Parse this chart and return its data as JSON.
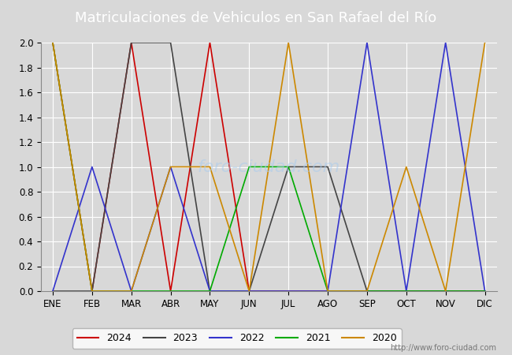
{
  "title": "Matriculaciones de Vehiculos en San Rafael del Río",
  "months": [
    "ENE",
    "FEB",
    "MAR",
    "ABR",
    "MAY",
    "JUN",
    "JUL",
    "AGO",
    "SEP",
    "OCT",
    "NOV",
    "DIC"
  ],
  "series": {
    "2024": [
      2,
      0,
      2,
      0,
      2,
      0,
      0,
      0,
      0,
      0,
      0,
      0
    ],
    "2023": [
      0,
      0,
      2,
      2,
      0,
      0,
      1,
      1,
      0,
      0,
      0,
      0
    ],
    "2022": [
      0,
      1,
      0,
      1,
      0,
      0,
      0,
      0,
      2,
      0,
      2,
      0
    ],
    "2021": [
      2,
      0,
      0,
      0,
      0,
      1,
      1,
      0,
      0,
      0,
      0,
      0
    ],
    "2020": [
      2,
      0,
      0,
      1,
      1,
      0,
      2,
      0,
      0,
      1,
      0,
      2
    ]
  },
  "colors": {
    "2024": "#cc0000",
    "2023": "#444444",
    "2022": "#3333cc",
    "2021": "#00aa00",
    "2020": "#cc8800"
  },
  "ylim": [
    0,
    2.0
  ],
  "yticks": [
    0.0,
    0.2,
    0.4,
    0.6,
    0.8,
    1.0,
    1.2,
    1.4,
    1.6,
    1.8,
    2.0
  ],
  "title_fontsize": 13,
  "plot_bg_color": "#d8d8d8",
  "fig_bg_color": "#d8d8d8",
  "header_color": "#4060a0",
  "url": "http://www.foro-ciudad.com",
  "watermark": "foro-ciudad.com"
}
